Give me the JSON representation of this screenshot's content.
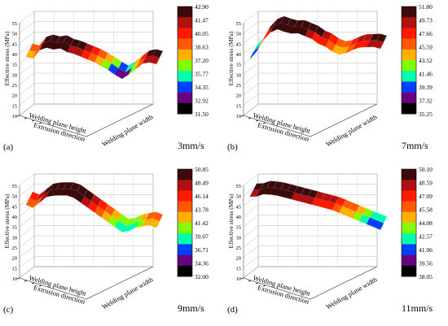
{
  "chart_data": [
    {
      "type": "surface3d",
      "panel_label": "(a)",
      "speed_label": "3mm/s",
      "zlabel": "Effective stress (MPa)",
      "xlabel": "Welding plane width",
      "ylabel_1": "Welding plane height",
      "ylabel_2": "Extrusion direction",
      "zticks": [
        "10",
        "15",
        "20",
        "25",
        "30",
        "35",
        "40",
        "45",
        "50",
        "55"
      ],
      "zlim": [
        10,
        55
      ],
      "colorbar": [
        "42.90",
        "41.47",
        "40.05",
        "38.63",
        "37.20",
        "35.77",
        "34.35",
        "32.92",
        "31.50"
      ],
      "colors": [
        "#3b0a0a",
        "#b01010",
        "#ff1a00",
        "#ff5a00",
        "#ffb000",
        "#80ff00",
        "#00ffb0",
        "#0040ff",
        "#6a0080",
        "#000000"
      ],
      "profile": [
        37,
        36.5,
        41,
        42.5,
        42,
        42.9,
        41.5,
        41,
        40,
        39,
        38,
        36.5,
        35,
        33,
        31.5,
        34,
        37,
        40,
        41,
        40.5
      ]
    },
    {
      "type": "surface3d",
      "panel_label": "(b)",
      "speed_label": "7mm/s",
      "zlabel": "Effective stress (MPa)",
      "xlabel": "Welding plane width",
      "ylabel_1": "Welding plane height",
      "ylabel_2": "Extrusion direction",
      "zticks": [
        "10",
        "15",
        "20",
        "25",
        "30",
        "35",
        "40",
        "45",
        "50",
        "55"
      ],
      "zlim": [
        10,
        55
      ],
      "colorbar": [
        "51.80",
        "49.73",
        "47.66",
        "45.59",
        "43.52",
        "41.46",
        "39.39",
        "37.32",
        "35.25"
      ],
      "colors": [
        "#3b0a0a",
        "#b01010",
        "#ff1a00",
        "#ff5a00",
        "#ffb000",
        "#80ff00",
        "#00ffb0",
        "#0040ff",
        "#6a0080",
        "#000000"
      ],
      "profile": [
        36,
        40,
        46,
        50,
        51.8,
        51,
        50.5,
        51,
        50,
        49,
        47,
        46,
        44,
        43,
        44,
        46,
        47.5,
        48,
        48.5,
        48
      ]
    },
    {
      "type": "surface3d",
      "panel_label": "(c)",
      "speed_label": "9mm/s",
      "zlabel": "Effective stress (MPa)",
      "xlabel": "Welding plane width",
      "ylabel_1": "Welding plane height",
      "ylabel_2": "Extrusion direction",
      "zticks": [
        "10",
        "15",
        "20",
        "25",
        "30",
        "35",
        "40",
        "45",
        "50",
        "55"
      ],
      "zlim": [
        10,
        55
      ],
      "colorbar": [
        "50.85",
        "48.49",
        "46.14",
        "43.78",
        "41.42",
        "39.07",
        "36.71",
        "34.36",
        "32.00"
      ],
      "colors": [
        "#3b0a0a",
        "#b01010",
        "#ff1a00",
        "#ff5a00",
        "#ffb000",
        "#80ff00",
        "#00ffb0",
        "#0040ff",
        "#6a0080",
        "#000000"
      ],
      "profile": [
        44,
        43,
        46,
        49,
        50,
        50.5,
        50.8,
        50,
        48,
        46,
        44,
        42,
        40,
        38,
        36,
        37,
        39,
        40,
        41,
        40
      ]
    },
    {
      "type": "surface3d",
      "panel_label": "(d)",
      "speed_label": "11mm/s",
      "zlabel": "Effective stress (MPa)",
      "xlabel": "Welding plane width",
      "ylabel_1": "Welding plane height",
      "ylabel_2": "Extrusion direction",
      "zticks": [
        "10",
        "15",
        "20",
        "25",
        "30",
        "35",
        "40",
        "45",
        "50",
        "55"
      ],
      "zlim": [
        10,
        55
      ],
      "colorbar": [
        "50.10",
        "48.59",
        "47.09",
        "45.58",
        "44.08",
        "42.57",
        "41.06",
        "39.56",
        "38.05"
      ],
      "colors": [
        "#3b0a0a",
        "#b01010",
        "#ff1a00",
        "#ff5a00",
        "#ffb000",
        "#80ff00",
        "#00ffb0",
        "#0040ff",
        "#6a0080",
        "#000000"
      ],
      "profile": [
        48,
        48.5,
        50,
        50.1,
        50,
        49.5,
        49,
        48.5,
        48,
        47.5,
        47,
        46.5,
        46,
        45,
        44,
        43,
        42,
        41,
        40,
        39
      ]
    }
  ]
}
